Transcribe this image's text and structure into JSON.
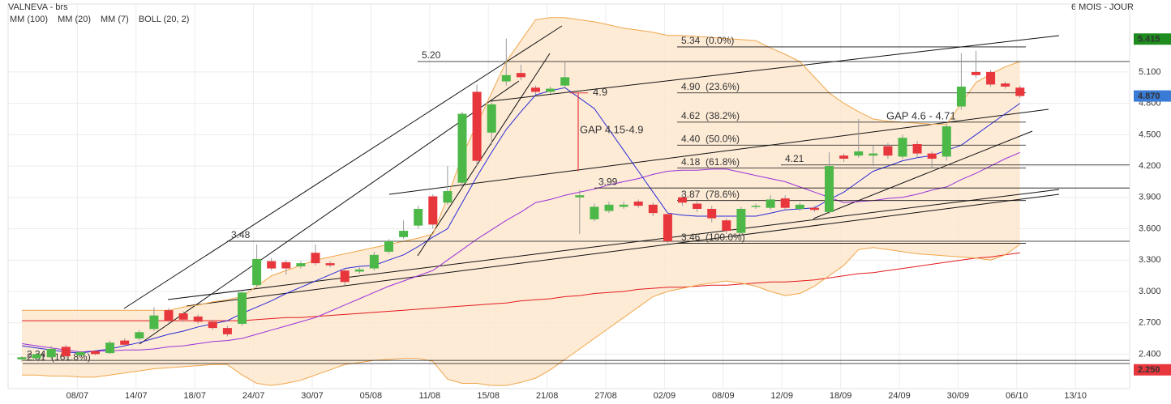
{
  "chart_data": {
    "type": "candlestick",
    "title": "VALNEVA - brs",
    "period": "6 MOIS - JOUR",
    "categories": [
      null,
      null,
      null,
      null,
      "08/07",
      null,
      null,
      null,
      "14/07",
      null,
      null,
      null,
      "18/07",
      null,
      null,
      null,
      "24/07",
      null,
      null,
      null,
      "30/07",
      null,
      null,
      null,
      "05/08",
      null,
      null,
      null,
      "11/08",
      null,
      null,
      null,
      "15/08",
      null,
      null,
      null,
      "21/08",
      null,
      null,
      null,
      "27/08",
      null,
      null,
      null,
      "02/09",
      null,
      null,
      null,
      "08/09",
      null,
      null,
      null,
      "12/09",
      null,
      null,
      null,
      "18/09",
      null,
      null,
      null,
      "24/09",
      null,
      null,
      null,
      "30/09",
      null,
      null,
      null,
      "06/10",
      null,
      null,
      null,
      "13/10"
    ],
    "open": [
      2.35,
      2.36,
      2.37,
      2.47,
      2.39,
      2.43,
      2.41,
      2.53,
      2.55,
      2.64,
      2.82,
      2.79,
      2.76,
      2.71,
      2.65,
      2.69,
      3.06,
      3.29,
      3.28,
      3.24,
      3.37,
      3.27,
      3.2,
      3.19,
      3.22,
      3.38,
      3.52,
      3.63,
      3.91,
      3.85,
      4.04,
      4.91,
      4.52,
      5.01,
      5.09,
      4.95,
      4.91,
      4.97,
      3.9,
      3.69,
      3.77,
      3.81,
      3.86,
      3.83,
      3.74,
      3.9,
      3.84,
      3.79,
      3.68,
      3.56,
      3.81,
      3.8,
      3.89,
      3.79,
      3.8,
      3.76,
      4.3,
      4.3,
      4.3,
      4.39,
      4.29,
      4.41,
      4.32,
      4.29,
      4.77,
      5.1,
      5.1,
      4.99,
      4.95,
      null,
      null,
      null,
      null
    ],
    "high": [
      2.38,
      2.41,
      2.48,
      2.49,
      2.43,
      2.44,
      2.53,
      2.55,
      2.63,
      2.85,
      2.84,
      2.81,
      2.78,
      2.73,
      2.67,
      3.0,
      3.45,
      3.32,
      3.3,
      3.29,
      3.45,
      3.29,
      3.22,
      3.23,
      3.38,
      3.5,
      3.68,
      3.82,
      3.93,
      4.2,
      4.72,
      4.98,
      4.81,
      5.42,
      5.17,
      4.97,
      4.96,
      5.2,
      3.97,
      3.84,
      3.86,
      3.86,
      3.88,
      3.85,
      3.76,
      3.93,
      3.86,
      3.82,
      3.7,
      3.81,
      3.84,
      3.92,
      3.92,
      3.85,
      3.82,
      4.33,
      4.32,
      4.65,
      4.4,
      4.42,
      4.5,
      4.44,
      4.34,
      4.6,
      5.28,
      5.3,
      5.12,
      5.01,
      4.97,
      null,
      null,
      null,
      null
    ],
    "low": [
      2.33,
      2.34,
      2.35,
      2.36,
      2.38,
      2.39,
      2.4,
      2.47,
      2.53,
      2.62,
      2.7,
      2.71,
      2.69,
      2.63,
      2.57,
      2.67,
      3.04,
      3.2,
      3.16,
      3.22,
      3.25,
      3.23,
      3.06,
      3.17,
      3.2,
      3.36,
      3.5,
      3.6,
      3.6,
      3.83,
      4.0,
      4.2,
      4.4,
      4.97,
      5.02,
      4.88,
      4.89,
      4.94,
      3.55,
      3.67,
      3.75,
      3.79,
      3.8,
      3.72,
      3.46,
      3.82,
      3.76,
      3.66,
      3.55,
      3.53,
      3.79,
      3.78,
      3.78,
      3.77,
      3.76,
      3.74,
      4.24,
      4.28,
      4.2,
      4.27,
      4.27,
      4.28,
      4.18,
      4.25,
      4.74,
      5.04,
      4.96,
      4.94,
      4.85,
      null,
      null,
      null,
      null
    ],
    "close": [
      2.37,
      2.4,
      2.45,
      2.38,
      2.42,
      2.4,
      2.51,
      2.49,
      2.61,
      2.77,
      2.72,
      2.73,
      2.71,
      2.65,
      2.59,
      2.99,
      3.31,
      3.22,
      3.22,
      3.27,
      3.27,
      3.25,
      3.09,
      3.21,
      3.35,
      3.48,
      3.58,
      3.79,
      3.64,
      3.96,
      4.7,
      4.25,
      4.79,
      5.07,
      5.05,
      4.91,
      4.94,
      5.05,
      3.92,
      3.81,
      3.83,
      3.83,
      3.82,
      3.75,
      3.48,
      3.85,
      3.79,
      3.7,
      3.58,
      3.79,
      3.82,
      3.88,
      3.8,
      3.83,
      3.78,
      4.2,
      4.27,
      4.34,
      4.32,
      4.3,
      4.47,
      4.32,
      4.27,
      4.58,
      4.96,
      5.07,
      4.98,
      4.96,
      4.87,
      null,
      null,
      null,
      null
    ],
    "up_color": "#4cb848",
    "down_color": "#e8363d",
    "indicators": [
      {
        "name": "MM (100)",
        "color": "#e31a1c",
        "values": [
          2.72,
          2.72,
          2.72,
          2.72,
          2.72,
          2.72,
          2.72,
          2.72,
          2.72,
          2.72,
          2.72,
          2.72,
          2.72,
          2.72,
          2.72,
          2.72,
          2.73,
          2.74,
          2.75,
          2.75,
          2.76,
          2.77,
          2.78,
          2.79,
          2.8,
          2.81,
          2.82,
          2.83,
          2.84,
          2.85,
          2.86,
          2.87,
          2.88,
          2.89,
          2.91,
          2.92,
          2.93,
          2.95,
          2.96,
          2.98,
          2.99,
          3.0,
          3.02,
          3.03,
          3.04,
          3.04,
          3.05,
          3.06,
          3.06,
          3.07,
          3.08,
          3.09,
          3.09,
          3.1,
          3.11,
          3.13,
          3.15,
          3.17,
          3.18,
          3.2,
          3.22,
          3.24,
          3.26,
          3.28,
          3.3,
          3.32,
          3.33,
          3.35,
          3.37,
          null,
          null,
          null,
          null
        ]
      },
      {
        "name": "MM (20)",
        "color": "#9b30d9",
        "values": [
          2.5,
          2.48,
          2.46,
          2.44,
          2.42,
          2.43,
          2.43,
          2.44,
          2.44,
          2.45,
          2.47,
          2.48,
          2.5,
          2.52,
          2.53,
          2.55,
          2.59,
          2.63,
          2.67,
          2.71,
          2.75,
          2.81,
          2.87,
          2.93,
          2.99,
          3.05,
          3.1,
          3.15,
          3.2,
          3.3,
          3.4,
          3.5,
          3.59,
          3.68,
          3.76,
          3.85,
          3.88,
          3.92,
          3.95,
          3.98,
          4.02,
          4.05,
          4.08,
          4.12,
          4.15,
          4.16,
          4.16,
          4.17,
          4.17,
          4.14,
          4.11,
          4.08,
          4.05,
          4.0,
          3.95,
          3.9,
          3.85,
          3.86,
          3.87,
          3.89,
          3.9,
          3.93,
          3.97,
          4.0,
          4.07,
          4.13,
          4.2,
          4.27,
          4.33,
          null,
          null,
          null,
          null
        ]
      },
      {
        "name": "MM (7)",
        "color": "#2a2ad6",
        "values": [
          2.48,
          2.46,
          2.44,
          2.42,
          2.41,
          2.43,
          2.45,
          2.48,
          2.51,
          2.55,
          2.59,
          2.62,
          2.66,
          2.69,
          2.72,
          2.79,
          2.85,
          2.91,
          2.98,
          3.04,
          3.1,
          3.16,
          3.22,
          3.24,
          3.25,
          3.3,
          3.35,
          3.43,
          3.52,
          3.6,
          3.85,
          4.1,
          4.33,
          4.55,
          4.72,
          4.88,
          4.92,
          4.95,
          4.85,
          4.75,
          4.55,
          4.35,
          4.15,
          3.95,
          3.75,
          3.73,
          3.72,
          3.72,
          3.72,
          3.72,
          3.72,
          3.75,
          3.78,
          3.79,
          3.8,
          3.88,
          3.95,
          4.05,
          4.15,
          4.2,
          4.25,
          4.28,
          4.3,
          4.35,
          4.4,
          4.5,
          4.6,
          4.7,
          4.8,
          null,
          null,
          null,
          null
        ]
      },
      {
        "name": "BOLL (20, 2)",
        "color": "#f0a64a",
        "fill": "#fde8cf",
        "upper": [
          2.82,
          2.82,
          2.82,
          2.82,
          2.82,
          2.82,
          2.82,
          2.82,
          2.82,
          2.82,
          2.82,
          2.85,
          2.87,
          2.9,
          2.92,
          2.95,
          3.05,
          3.15,
          3.2,
          3.25,
          3.3,
          3.33,
          3.36,
          3.39,
          3.42,
          3.45,
          3.48,
          3.51,
          3.55,
          3.9,
          4.3,
          4.6,
          4.9,
          5.2,
          5.4,
          5.6,
          5.62,
          5.62,
          5.6,
          5.58,
          5.55,
          5.52,
          5.5,
          5.48,
          5.45,
          5.45,
          5.44,
          5.43,
          5.42,
          5.41,
          5.4,
          5.33,
          5.27,
          5.2,
          5.05,
          4.9,
          4.8,
          4.72,
          4.65,
          4.63,
          4.62,
          4.61,
          4.6,
          4.6,
          4.8,
          5.0,
          5.08,
          5.15,
          5.2,
          null,
          null,
          null,
          null
        ],
        "lower": [
          2.2,
          2.2,
          2.19,
          2.19,
          2.18,
          2.18,
          2.2,
          2.22,
          2.24,
          2.26,
          2.27,
          2.28,
          2.29,
          2.3,
          2.3,
          2.2,
          2.12,
          2.1,
          2.12,
          2.15,
          2.2,
          2.25,
          2.3,
          2.32,
          2.34,
          2.35,
          2.36,
          2.36,
          2.33,
          2.16,
          2.12,
          2.12,
          2.1,
          2.1,
          2.13,
          2.17,
          2.25,
          2.35,
          2.45,
          2.55,
          2.65,
          2.75,
          2.85,
          2.95,
          3.0,
          3.03,
          3.06,
          3.08,
          3.1,
          3.08,
          3.05,
          3.0,
          2.96,
          2.98,
          3.05,
          3.15,
          3.25,
          3.4,
          3.42,
          3.4,
          3.38,
          3.36,
          3.35,
          3.34,
          3.33,
          3.32,
          3.3,
          3.35,
          3.45,
          null,
          null,
          null,
          null
        ]
      }
    ],
    "annotations": [
      {
        "label": "5.20",
        "value": 5.2
      },
      {
        "label": "3.48",
        "value": 3.48
      },
      {
        "label": "2.34",
        "value": 2.34
      },
      {
        "label": "3.99",
        "value": 3.99
      },
      {
        "label": "4.21",
        "value": 4.21
      },
      {
        "label": "5.34  (0.0%)",
        "value": 5.34
      },
      {
        "label": "4.90  (23.6%)",
        "value": 4.9
      },
      {
        "label": "4.62  (38.2%)",
        "value": 4.62
      },
      {
        "label": "4.40  (50.0%)",
        "value": 4.4
      },
      {
        "label": "4.18  (61.8%)",
        "value": 4.18
      },
      {
        "label": "3.87  (78.6%)",
        "value": 3.87
      },
      {
        "label": "3.46  (100.0%)",
        "value": 3.46
      },
      {
        "label": "2.31  (161.8%)",
        "value": 2.31
      }
    ],
    "gaps": [
      {
        "label": "GAP 4.15-4.9",
        "high": 4.9,
        "low": 4.15,
        "color": "#e8363d"
      },
      {
        "label": "GAP 4.6 - 4.71"
      }
    ],
    "price_markers": [
      {
        "value": 5.415,
        "label": "5.415",
        "color": "#1e8c1e"
      },
      {
        "value": 4.87,
        "label": "4.870",
        "color": "#3a7bd5"
      },
      {
        "value": 2.25,
        "label": "2.250",
        "color": "#e8363d"
      }
    ],
    "ylim": [
      2.07,
      5.75
    ],
    "yticks": [
      {
        "value": 2.4,
        "label": "2.400"
      },
      {
        "value": 2.7,
        "label": "2.700"
      },
      {
        "value": 3.0,
        "label": "3.000"
      },
      {
        "value": 3.3,
        "label": "3.300"
      },
      {
        "value": 3.6,
        "label": "3.600"
      },
      {
        "value": 3.9,
        "label": "3.900"
      },
      {
        "value": 4.2,
        "label": "4.200"
      },
      {
        "value": 4.5,
        "label": "4.500"
      },
      {
        "value": 4.8,
        "label": "4.800"
      },
      {
        "value": 5.1,
        "label": "5.100"
      }
    ],
    "grid": true
  }
}
